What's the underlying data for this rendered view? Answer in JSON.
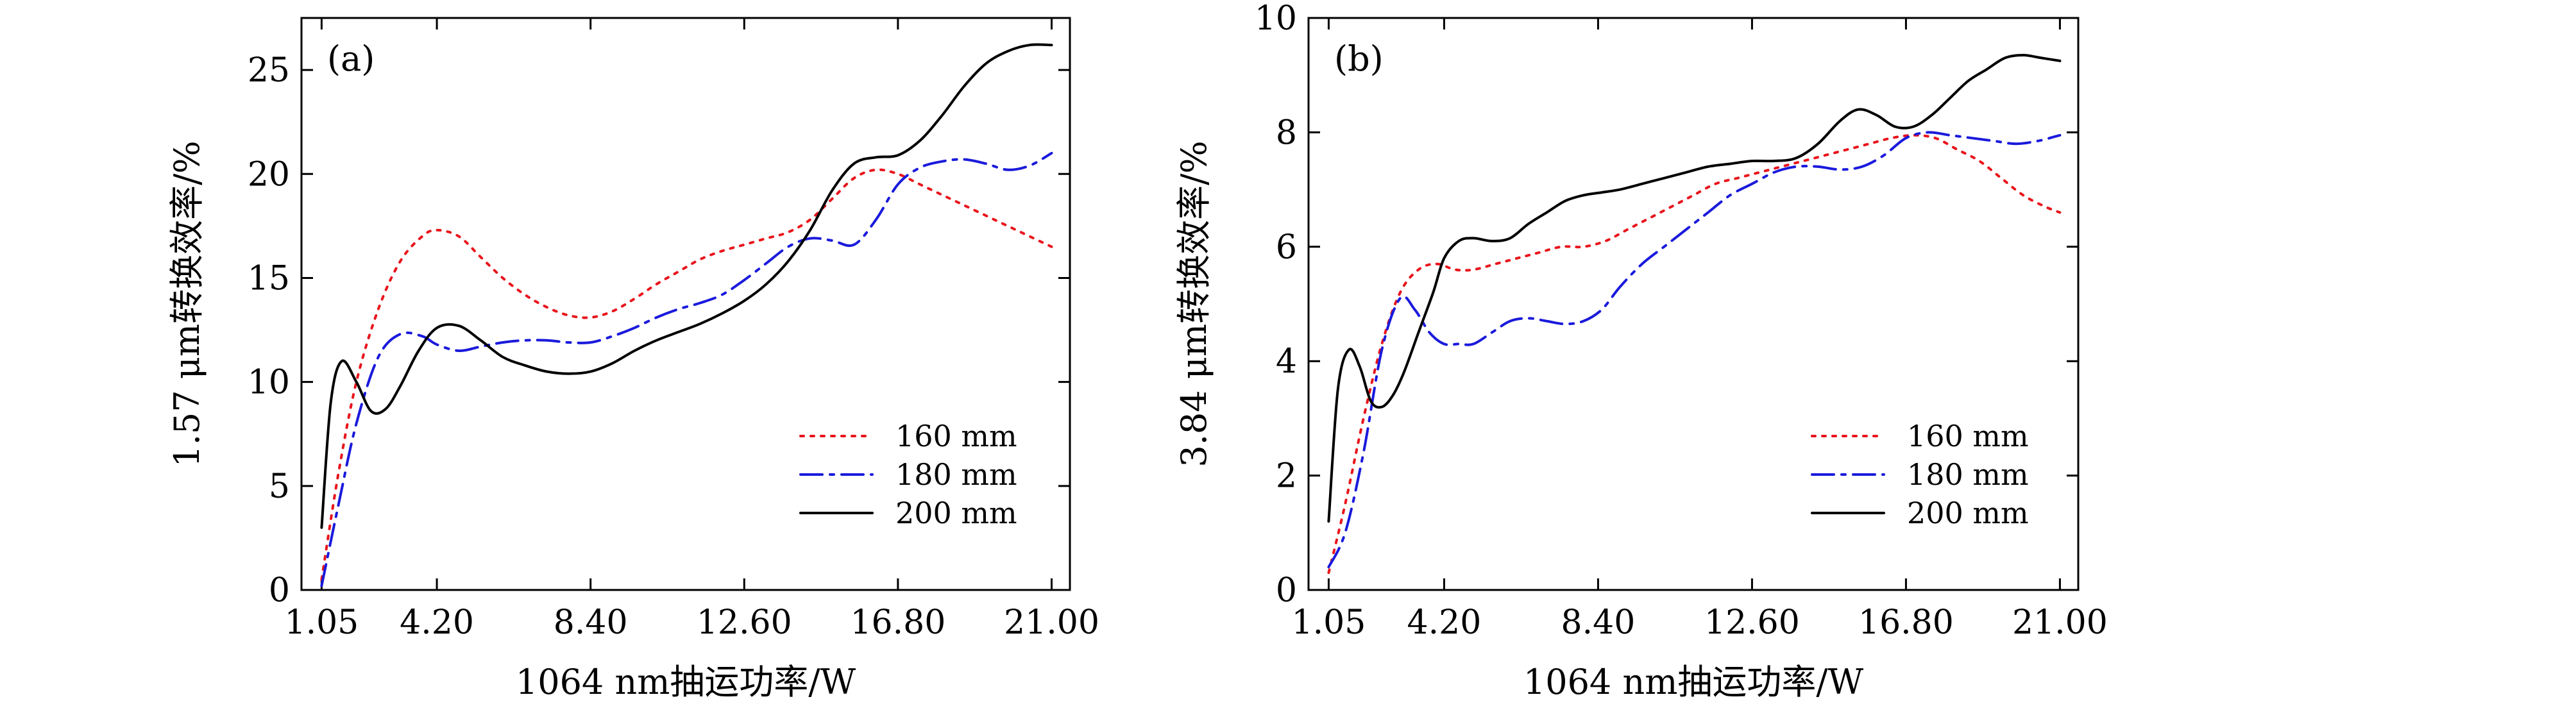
{
  "chart_data": [
    {
      "type": "line",
      "panel_label": "(a)",
      "xlabel": "1064 nm抽运功率/W",
      "ylabel": "1.57 μm转换效率/%",
      "xlim": [
        0.5,
        21.5
      ],
      "ylim": [
        0,
        27.5
      ],
      "xticks": [
        1.05,
        4.2,
        8.4,
        12.6,
        16.8,
        21.0
      ],
      "xtick_labels": [
        "1.05",
        "4.20",
        "8.40",
        "12.60",
        "16.80",
        "21.00"
      ],
      "yticks": [
        0,
        5,
        10,
        15,
        20,
        25
      ],
      "ytick_labels": [
        "0",
        "5",
        "10",
        "15",
        "20",
        "25"
      ],
      "legend_position": "lower-right",
      "series": [
        {
          "name": "160 mm",
          "color": "#e8141c",
          "style": "dotted",
          "x": [
            1.05,
            1.5,
            2.0,
            2.6,
            3.2,
            3.8,
            4.2,
            4.8,
            5.4,
            6.0,
            6.6,
            7.2,
            7.8,
            8.4,
            9.0,
            9.6,
            10.2,
            10.8,
            11.4,
            12.0,
            12.6,
            13.2,
            13.8,
            14.4,
            15.0,
            15.6,
            16.2,
            16.8,
            17.4,
            18.0,
            18.6,
            19.2,
            19.8,
            20.4,
            21.0
          ],
          "y": [
            0.5,
            5.5,
            10.0,
            13.5,
            15.8,
            17.0,
            17.3,
            17.0,
            16.0,
            15.0,
            14.2,
            13.6,
            13.2,
            13.1,
            13.4,
            14.0,
            14.7,
            15.3,
            15.9,
            16.3,
            16.6,
            16.9,
            17.2,
            17.8,
            18.8,
            19.8,
            20.2,
            20.0,
            19.5,
            19.0,
            18.5,
            18.0,
            17.5,
            17.0,
            16.5
          ]
        },
        {
          "name": "180 mm",
          "color": "#1a1adc",
          "style": "dashdot",
          "x": [
            1.05,
            1.5,
            2.0,
            2.6,
            3.2,
            3.8,
            4.2,
            4.8,
            5.4,
            6.0,
            6.6,
            7.2,
            7.8,
            8.4,
            9.0,
            9.6,
            10.2,
            10.8,
            11.4,
            12.0,
            12.6,
            13.2,
            13.8,
            14.4,
            15.0,
            15.6,
            16.2,
            16.8,
            17.4,
            18.0,
            18.6,
            19.2,
            19.8,
            20.4,
            21.0
          ],
          "y": [
            0.2,
            4.0,
            8.0,
            11.2,
            12.3,
            12.2,
            11.8,
            11.5,
            11.7,
            11.9,
            12.0,
            12.0,
            11.9,
            11.9,
            12.2,
            12.6,
            13.1,
            13.5,
            13.8,
            14.2,
            14.9,
            15.7,
            16.5,
            16.9,
            16.8,
            16.6,
            17.8,
            19.5,
            20.3,
            20.6,
            20.7,
            20.5,
            20.2,
            20.4,
            21.0
          ]
        },
        {
          "name": "200 mm",
          "color": "#000000",
          "style": "solid",
          "x": [
            1.05,
            1.3,
            1.6,
            2.0,
            2.4,
            2.8,
            3.2,
            3.7,
            4.2,
            4.8,
            5.4,
            6.0,
            6.6,
            7.2,
            7.8,
            8.4,
            9.0,
            9.6,
            10.2,
            10.8,
            11.4,
            12.0,
            12.6,
            13.2,
            13.8,
            14.4,
            15.0,
            15.6,
            16.2,
            16.8,
            17.4,
            18.0,
            18.6,
            19.2,
            19.8,
            20.4,
            21.0
          ],
          "y": [
            3.0,
            9.0,
            11.0,
            10.0,
            8.6,
            8.7,
            9.8,
            11.5,
            12.6,
            12.7,
            12.0,
            11.2,
            10.8,
            10.5,
            10.4,
            10.5,
            10.9,
            11.5,
            12.0,
            12.4,
            12.8,
            13.3,
            13.9,
            14.7,
            15.8,
            17.3,
            19.2,
            20.5,
            20.8,
            20.9,
            21.6,
            22.8,
            24.2,
            25.3,
            25.9,
            26.2,
            26.2
          ]
        }
      ]
    },
    {
      "type": "line",
      "panel_label": "(b)",
      "xlabel": "1064 nm抽运功率/W",
      "ylabel": "3.84 μm转换效率/%",
      "xlim": [
        0.5,
        21.5
      ],
      "ylim": [
        0,
        10
      ],
      "xticks": [
        1.05,
        4.2,
        8.4,
        12.6,
        16.8,
        21.0
      ],
      "xtick_labels": [
        "1.05",
        "4.20",
        "8.40",
        "12.60",
        "16.80",
        "21.00"
      ],
      "yticks": [
        0,
        2,
        4,
        6,
        8,
        10
      ],
      "ytick_labels": [
        "0",
        "2",
        "4",
        "6",
        "8",
        "10"
      ],
      "legend_position": "lower-right",
      "series": [
        {
          "name": "160 mm",
          "color": "#e8141c",
          "style": "dotted",
          "x": [
            1.05,
            1.5,
            2.0,
            2.5,
            3.0,
            3.5,
            4.0,
            4.5,
            5.0,
            5.6,
            6.2,
            6.8,
            7.4,
            8.0,
            8.6,
            9.2,
            9.8,
            10.4,
            11.0,
            11.6,
            12.2,
            12.8,
            13.4,
            14.0,
            14.6,
            15.2,
            15.8,
            16.4,
            17.0,
            17.6,
            18.2,
            18.8,
            19.4,
            20.0,
            20.6,
            21.0
          ],
          "y": [
            0.3,
            1.5,
            3.0,
            4.3,
            5.2,
            5.6,
            5.7,
            5.6,
            5.6,
            5.7,
            5.8,
            5.9,
            6.0,
            6.0,
            6.1,
            6.3,
            6.5,
            6.7,
            6.9,
            7.1,
            7.2,
            7.3,
            7.4,
            7.5,
            7.6,
            7.7,
            7.8,
            7.9,
            7.95,
            7.9,
            7.7,
            7.5,
            7.2,
            6.9,
            6.7,
            6.6
          ]
        },
        {
          "name": "180 mm",
          "color": "#1a1adc",
          "style": "dashdot",
          "x": [
            1.05,
            1.5,
            2.0,
            2.5,
            3.0,
            3.4,
            3.8,
            4.2,
            4.6,
            5.0,
            5.5,
            6.0,
            6.5,
            7.0,
            7.5,
            8.0,
            8.5,
            9.0,
            9.6,
            10.2,
            10.8,
            11.4,
            12.0,
            12.6,
            13.2,
            13.8,
            14.4,
            15.0,
            15.6,
            16.2,
            16.8,
            17.4,
            18.0,
            18.6,
            19.2,
            19.8,
            20.4,
            21.0
          ],
          "y": [
            0.4,
            1.0,
            2.4,
            4.2,
            5.1,
            4.9,
            4.5,
            4.3,
            4.3,
            4.3,
            4.5,
            4.7,
            4.75,
            4.7,
            4.65,
            4.7,
            4.9,
            5.3,
            5.7,
            6.0,
            6.3,
            6.6,
            6.9,
            7.1,
            7.3,
            7.4,
            7.4,
            7.35,
            7.4,
            7.6,
            7.9,
            8.0,
            7.95,
            7.9,
            7.85,
            7.8,
            7.85,
            7.95
          ]
        },
        {
          "name": "200 mm",
          "color": "#000000",
          "style": "solid",
          "x": [
            1.05,
            1.3,
            1.6,
            1.9,
            2.2,
            2.5,
            2.8,
            3.1,
            3.5,
            3.9,
            4.2,
            4.6,
            5.0,
            5.5,
            6.0,
            6.5,
            7.0,
            7.5,
            8.0,
            8.5,
            9.0,
            9.6,
            10.2,
            10.8,
            11.4,
            12.0,
            12.6,
            13.2,
            13.8,
            14.4,
            15.0,
            15.5,
            16.0,
            16.5,
            17.0,
            17.5,
            18.0,
            18.5,
            19.0,
            19.5,
            20.0,
            20.5,
            21.0
          ],
          "y": [
            1.2,
            3.5,
            4.2,
            3.9,
            3.3,
            3.2,
            3.4,
            3.8,
            4.5,
            5.2,
            5.8,
            6.1,
            6.15,
            6.1,
            6.15,
            6.4,
            6.6,
            6.8,
            6.9,
            6.95,
            7.0,
            7.1,
            7.2,
            7.3,
            7.4,
            7.45,
            7.5,
            7.5,
            7.55,
            7.8,
            8.2,
            8.4,
            8.3,
            8.1,
            8.1,
            8.3,
            8.6,
            8.9,
            9.1,
            9.3,
            9.35,
            9.3,
            9.25
          ]
        }
      ]
    }
  ]
}
